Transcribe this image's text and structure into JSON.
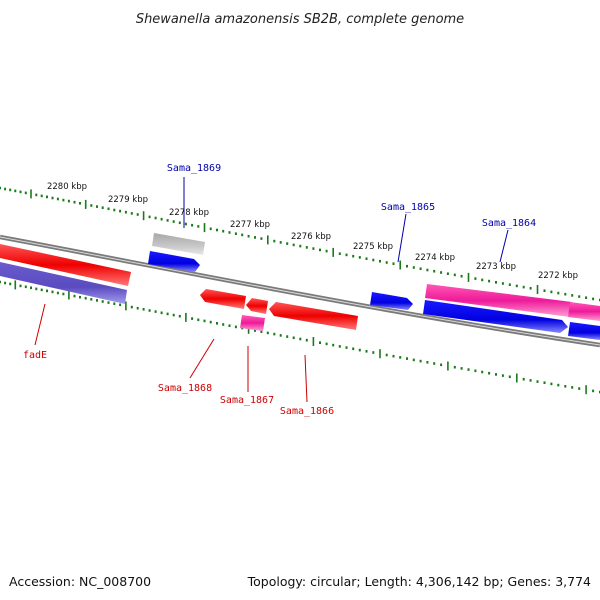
{
  "title": "Shewanella amazonensis SB2B, complete genome",
  "footer": {
    "accession": "Accession: NC_008700",
    "summary": "Topology: circular; Length: 4,306,142 bp; Genes: 3,774"
  },
  "colors": {
    "backbone": "#7a7a7a",
    "tick": "#1a7a1a",
    "red": "#ee0000",
    "blue": "#0000ee",
    "pink": "#ee1a9a",
    "violet": "#6a5acd",
    "gray": "#b5b5b5",
    "label_blue": "#0000aa",
    "label_red": "#cc0000"
  },
  "ticks": [
    {
      "label": "2280 kbp"
    },
    {
      "label": "2279 kbp"
    },
    {
      "label": "2278 kbp"
    },
    {
      "label": "2277 kbp"
    },
    {
      "label": "2276 kbp"
    },
    {
      "label": "2275 kbp"
    },
    {
      "label": "2274 kbp"
    },
    {
      "label": "2273 kbp"
    },
    {
      "label": "2272 kbp"
    }
  ],
  "gene_labels": {
    "sama_1869": "Sama_1869",
    "sama_1865": "Sama_1865",
    "sama_1864": "Sama_1864",
    "fade": "fadE",
    "sama_1868": "Sama_1868",
    "sama_1867": "Sama_1867",
    "sama_1866": "Sama_1866"
  }
}
